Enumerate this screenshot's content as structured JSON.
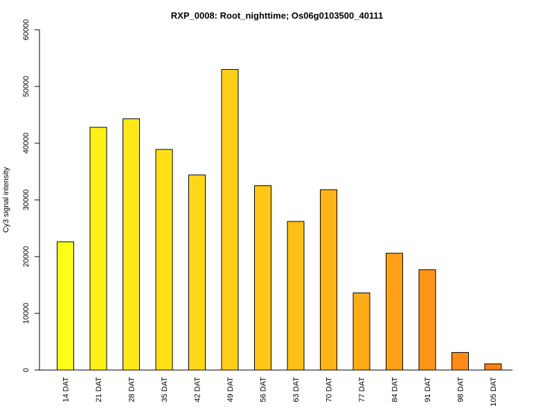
{
  "chart_data": {
    "type": "bar",
    "title": "RXP_0008: Root_nighttime; Os06g0103500_40111",
    "ylabel": "Cy3 signal intensity",
    "xlabel": "",
    "ylim": [
      0,
      60000
    ],
    "yticks": [
      0,
      10000,
      20000,
      30000,
      40000,
      50000,
      60000
    ],
    "categories": [
      "14 DAT",
      "21 DAT",
      "28 DAT",
      "35 DAT",
      "42 DAT",
      "49 DAT",
      "56 DAT",
      "63 DAT",
      "70 DAT",
      "77 DAT",
      "84 DAT",
      "91 DAT",
      "98 DAT",
      "105 DAT"
    ],
    "values": [
      22600,
      42800,
      44300,
      38900,
      34400,
      53000,
      32500,
      26200,
      31800,
      13600,
      20600,
      17700,
      3100,
      1100
    ],
    "colors": [
      "#FFFF17",
      "#FFF017",
      "#FFE817",
      "#FFE017",
      "#FFD817",
      "#FFD017",
      "#FFC817",
      "#FFC017",
      "#FFB517",
      "#FFAC17",
      "#FFA017",
      "#FF9517",
      "#FF8A17",
      "#FF7F17"
    ],
    "grid": false,
    "legend": "none"
  }
}
